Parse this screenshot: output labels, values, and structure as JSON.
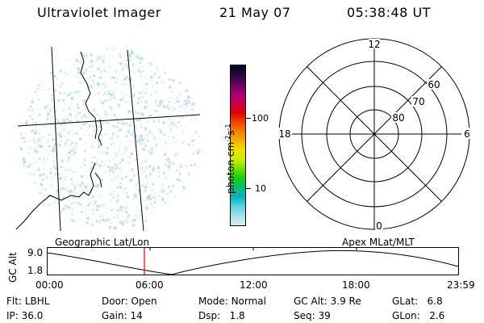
{
  "header": {
    "instrument": "Ultraviolet Imager",
    "date": "21 May 07",
    "time": "05:38:48 UT"
  },
  "colorbar": {
    "ticks": [
      "100",
      "10"
    ],
    "units_label": "photon cm",
    "units_sup1": "-2",
    "units_mid": "s",
    "units_sup2": "-1",
    "colors": [
      "#000033",
      "#2a0a3a",
      "#6a0060",
      "#a0007a",
      "#cc0040",
      "#e00000",
      "#f04000",
      "#f08000",
      "#f0b000",
      "#f0e000",
      "#c8f000",
      "#70e000",
      "#10d010",
      "#00c080",
      "#00b8c0",
      "#60d0e0",
      "#a8e0e8",
      "#d8ecee"
    ]
  },
  "polar_plot": {
    "mlt_labels": {
      "top": "12",
      "left": "18",
      "right": "6",
      "bottom": "0"
    },
    "lat_labels": [
      "60",
      "70",
      "80"
    ]
  },
  "timeline": {
    "left_label": "Geographic Lat/Lon",
    "right_label": "Apex MLat/MLT",
    "y_axis_label": "GC Alt",
    "y_ticks": [
      "9.0",
      "1.8"
    ],
    "x_ticks": [
      "00:00",
      "06:00",
      "12:00",
      "18:00",
      "23:59"
    ]
  },
  "status": {
    "flt_label": "Flt:",
    "flt_value": "LBHL",
    "ip_label": "IP:",
    "ip_value": "36.0",
    "door_label": "Door:",
    "door_value": "Open",
    "gain_label": "Gain:",
    "gain_value": "14",
    "mode_label": "Mode:",
    "mode_value": "Normal",
    "dsp_label": "Dsp:",
    "dsp_value": "1.8",
    "gcalt_label": "GC Alt:",
    "gcalt_value": "3.9 Re",
    "seq_label": "Seq:",
    "seq_value": "39",
    "glat_label": "GLat:",
    "glat_value": "6.8",
    "glon_label": "GLon:",
    "glon_value": "2.6"
  },
  "image_panel": {
    "speckle_color": "#b0dde0"
  }
}
